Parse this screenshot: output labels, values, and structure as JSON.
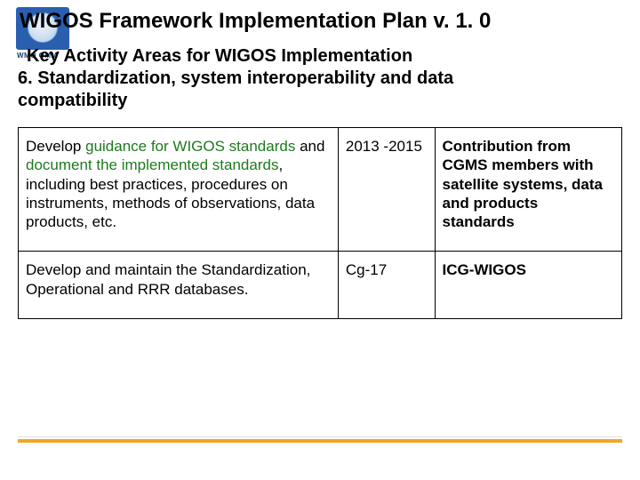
{
  "logo": {
    "text": "WMO OMM"
  },
  "title": "WIGOS Framework Implementation Plan v. 1. 0",
  "subtitle_line1": "Key Activity Areas for WIGOS Implementation",
  "subtitle_line2": " 6. Standardization, system interoperability and data",
  "subtitle_line3": "compatibility",
  "table": {
    "rows": [
      {
        "desc_pre": "Develop ",
        "desc_green1": "guidance for WIGOS standards",
        "desc_mid": " and ",
        "desc_green2": "document the implemented standards",
        "desc_post": ", including best practices, procedures on instruments, methods of observations, data products, etc.",
        "when": "2013 -2015",
        "who": "Contribution from CGMS members with satellite systems, data and products standards"
      },
      {
        "desc": "Develop and maintain the Standardization, Operational and RRR databases.",
        "when": "Cg-17",
        "who": "ICG-WIGOS"
      }
    ]
  },
  "colors": {
    "accent_rule": "#f5a623",
    "green": "#1f7a1f",
    "logo_bg": "#2a5fb0"
  }
}
